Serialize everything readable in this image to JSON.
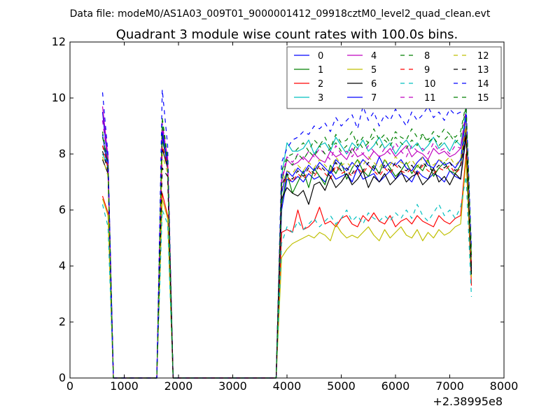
{
  "figure": {
    "suptitle": "Data file: modeM0/AS1A03_009T01_9000001412_09918cztM0_level2_quad_clean.evt",
    "title": "Quadrant 3 module wise count rates with 100.0s bins.",
    "x_offset_label": "+2.38995e8"
  },
  "chart_data": {
    "type": "line",
    "title": "Quadrant 3 module wise count rates with 100.0s bins.",
    "xlabel": "",
    "ylabel": "",
    "xlim": [
      0,
      8000
    ],
    "ylim": [
      0,
      12
    ],
    "x_offset": "+2.38995e8",
    "x_ticks": [
      0,
      1000,
      2000,
      3000,
      4000,
      5000,
      6000,
      7000,
      8000
    ],
    "y_ticks": [
      0,
      2,
      4,
      6,
      8,
      10,
      12
    ],
    "grid": false,
    "legend": {
      "placement": "top-right",
      "columns": 4
    },
    "x": [
      600,
      700,
      800,
      900,
      1000,
      1100,
      1200,
      1300,
      1400,
      1500,
      1600,
      1700,
      1800,
      1900,
      2000,
      2100,
      2200,
      2300,
      2400,
      2500,
      2600,
      2700,
      2800,
      2900,
      3000,
      3100,
      3200,
      3300,
      3400,
      3500,
      3600,
      3700,
      3800,
      3900,
      4000,
      4100,
      4200,
      4300,
      4400,
      4500,
      4600,
      4700,
      4800,
      4900,
      5000,
      5100,
      5200,
      5300,
      5400,
      5500,
      5600,
      5700,
      5800,
      5900,
      6000,
      6100,
      6200,
      6300,
      6400,
      6500,
      6600,
      6700,
      6800,
      6900,
      7000,
      7100,
      7200,
      7300,
      7400
    ],
    "series": [
      {
        "name": "0",
        "color": "#0000ff",
        "dash": "solid",
        "values": [
          9.5,
          7.6,
          0,
          0,
          0,
          0,
          0,
          0,
          0,
          0,
          0,
          8.7,
          7.5,
          0,
          0,
          0,
          0,
          0,
          0,
          0,
          0,
          0,
          0,
          0,
          0,
          0,
          0,
          0,
          0,
          0,
          0,
          0,
          0,
          6.0,
          7.1,
          7.0,
          7.2,
          7.0,
          7.3,
          7.1,
          7.2,
          7.0,
          7.4,
          7.1,
          7.2,
          7.3,
          7.0,
          7.5,
          7.1,
          7.2,
          7.3,
          7.0,
          7.2,
          7.4,
          7.1,
          7.3,
          7.2,
          7.0,
          7.4,
          7.2,
          7.1,
          7.3,
          7.2,
          7.0,
          7.4,
          7.2,
          7.1,
          8.8,
          3.9
        ]
      },
      {
        "name": "1",
        "color": "#008000",
        "dash": "solid",
        "values": [
          8.3,
          7.8,
          0,
          0,
          0,
          0,
          0,
          0,
          0,
          0,
          0,
          8.5,
          7.7,
          0,
          0,
          0,
          0,
          0,
          0,
          0,
          0,
          0,
          0,
          0,
          0,
          0,
          0,
          0,
          0,
          0,
          0,
          0,
          0,
          6.2,
          7.3,
          6.6,
          7.0,
          7.4,
          6.8,
          7.5,
          7.2,
          6.9,
          7.6,
          7.3,
          7.7,
          7.1,
          7.5,
          7.8,
          7.4,
          7.2,
          7.6,
          7.3,
          7.8,
          7.5,
          7.2,
          7.4,
          7.7,
          7.3,
          7.6,
          7.4,
          7.8,
          7.2,
          7.5,
          7.7,
          7.4,
          7.3,
          7.6,
          9.0,
          4.0
        ]
      },
      {
        "name": "2",
        "color": "#ff0000",
        "dash": "solid",
        "values": [
          6.5,
          5.9,
          0,
          0,
          0,
          0,
          0,
          0,
          0,
          0,
          0,
          6.6,
          5.8,
          0,
          0,
          0,
          0,
          0,
          0,
          0,
          0,
          0,
          0,
          0,
          0,
          0,
          0,
          0,
          0,
          0,
          0,
          0,
          0,
          5.2,
          5.3,
          5.2,
          6.0,
          5.3,
          5.4,
          5.6,
          6.1,
          5.5,
          5.6,
          5.4,
          5.7,
          5.8,
          5.5,
          5.4,
          5.8,
          5.6,
          5.9,
          5.6,
          5.5,
          5.8,
          5.4,
          5.6,
          5.7,
          5.5,
          5.8,
          5.6,
          5.5,
          5.4,
          5.8,
          5.6,
          5.5,
          5.7,
          5.8,
          8.0,
          3.3
        ]
      },
      {
        "name": "3",
        "color": "#00bfbf",
        "dash": "solid",
        "values": [
          8.0,
          7.6,
          0,
          0,
          0,
          0,
          0,
          0,
          0,
          0,
          0,
          9.0,
          7.8,
          0,
          0,
          0,
          0,
          0,
          0,
          0,
          0,
          0,
          0,
          0,
          0,
          0,
          0,
          0,
          0,
          0,
          0,
          0,
          0,
          7.2,
          8.4,
          8.1,
          8.1,
          8.2,
          8.5,
          8.0,
          8.3,
          8.4,
          8.1,
          8.6,
          8.3,
          8.0,
          8.4,
          8.2,
          8.5,
          8.1,
          8.3,
          8.6,
          8.2,
          8.4,
          8.0,
          8.3,
          8.5,
          8.2,
          8.4,
          8.1,
          8.3,
          8.6,
          8.2,
          8.4,
          8.1,
          8.5,
          8.3,
          9.5,
          4.4
        ]
      },
      {
        "name": "4",
        "color": "#bf00bf",
        "dash": "solid",
        "values": [
          9.7,
          7.9,
          0,
          0,
          0,
          0,
          0,
          0,
          0,
          0,
          0,
          8.9,
          7.9,
          0,
          0,
          0,
          0,
          0,
          0,
          0,
          0,
          0,
          0,
          0,
          0,
          0,
          0,
          0,
          0,
          0,
          0,
          0,
          0,
          7.0,
          7.8,
          7.6,
          7.7,
          7.9,
          7.7,
          8.0,
          7.8,
          7.7,
          8.1,
          7.9,
          8.0,
          7.8,
          8.2,
          7.9,
          8.0,
          7.8,
          8.1,
          7.9,
          8.0,
          8.2,
          7.9,
          8.1,
          8.3,
          7.9,
          8.1,
          8.0,
          7.8,
          8.2,
          8.0,
          8.1,
          7.9,
          8.0,
          8.2,
          9.3,
          4.2
        ]
      },
      {
        "name": "5",
        "color": "#bfbf00",
        "dash": "solid",
        "values": [
          6.4,
          5.8,
          0,
          0,
          0,
          0,
          0,
          0,
          0,
          0,
          0,
          6.4,
          5.7,
          0,
          0,
          0,
          0,
          0,
          0,
          0,
          0,
          0,
          0,
          0,
          0,
          0,
          0,
          0,
          0,
          0,
          0,
          0,
          0,
          4.3,
          4.6,
          4.8,
          4.9,
          5.0,
          5.1,
          5.0,
          5.2,
          5.1,
          4.9,
          5.5,
          5.2,
          5.0,
          5.1,
          5.0,
          5.2,
          5.4,
          5.1,
          4.9,
          5.3,
          5.0,
          5.2,
          5.4,
          5.1,
          5.0,
          5.3,
          4.9,
          5.2,
          5.0,
          5.3,
          5.1,
          5.2,
          5.4,
          5.5,
          7.8,
          3.6
        ]
      },
      {
        "name": "6",
        "color": "#000000",
        "dash": "solid",
        "values": [
          7.8,
          7.3,
          0,
          0,
          0,
          0,
          0,
          0,
          0,
          0,
          0,
          8.2,
          7.5,
          0,
          0,
          0,
          0,
          0,
          0,
          0,
          0,
          0,
          0,
          0,
          0,
          0,
          0,
          0,
          0,
          0,
          0,
          0,
          0,
          6.4,
          6.8,
          6.6,
          6.5,
          6.7,
          6.2,
          6.9,
          7.0,
          6.7,
          7.2,
          6.8,
          7.0,
          7.3,
          6.9,
          7.1,
          7.4,
          6.8,
          7.2,
          7.0,
          7.3,
          6.9,
          7.1,
          7.4,
          7.0,
          7.2,
          7.3,
          6.9,
          7.1,
          7.5,
          7.0,
          7.2,
          6.9,
          7.3,
          7.1,
          8.6,
          3.7
        ]
      },
      {
        "name": "7",
        "color": "#0000ff",
        "dash": "solid",
        "values": [
          8.7,
          7.4,
          0,
          0,
          0,
          0,
          0,
          0,
          0,
          0,
          0,
          8.8,
          7.6,
          0,
          0,
          0,
          0,
          0,
          0,
          0,
          0,
          0,
          0,
          0,
          0,
          0,
          0,
          0,
          0,
          0,
          0,
          0,
          0,
          6.6,
          7.4,
          7.2,
          7.5,
          7.3,
          7.6,
          7.4,
          7.7,
          7.5,
          7.3,
          7.8,
          7.6,
          7.4,
          7.7,
          7.5,
          7.8,
          7.6,
          7.4,
          7.9,
          7.5,
          7.7,
          7.6,
          7.8,
          7.5,
          7.4,
          7.7,
          7.9,
          7.6,
          7.5,
          7.8,
          7.6,
          7.7,
          7.5,
          7.8,
          9.4,
          4.1
        ]
      },
      {
        "name": "8",
        "color": "#008000",
        "dash": "dashed",
        "values": [
          8.6,
          7.7,
          0,
          0,
          0,
          0,
          0,
          0,
          0,
          0,
          0,
          9.3,
          7.9,
          0,
          0,
          0,
          0,
          0,
          0,
          0,
          0,
          0,
          0,
          0,
          0,
          0,
          0,
          0,
          0,
          0,
          0,
          0,
          0,
          7.4,
          7.9,
          8.0,
          8.2,
          8.4,
          8.1,
          8.5,
          8.3,
          8.6,
          8.2,
          8.7,
          8.4,
          8.5,
          8.8,
          8.3,
          8.6,
          8.4,
          8.9,
          8.5,
          8.7,
          8.4,
          8.8,
          8.6,
          8.5,
          8.9,
          8.6,
          8.7,
          8.5,
          8.8,
          8.6,
          8.9,
          8.7,
          8.6,
          8.8,
          9.8,
          4.5
        ]
      },
      {
        "name": "9",
        "color": "#ff0000",
        "dash": "dashed",
        "values": [
          8.3,
          7.5,
          0,
          0,
          0,
          0,
          0,
          0,
          0,
          0,
          0,
          8.3,
          7.6,
          0,
          0,
          0,
          0,
          0,
          0,
          0,
          0,
          0,
          0,
          0,
          0,
          0,
          0,
          0,
          0,
          0,
          0,
          0,
          0,
          6.8,
          7.2,
          7.0,
          7.3,
          7.1,
          7.4,
          7.2,
          7.5,
          7.3,
          7.1,
          7.6,
          7.3,
          7.4,
          7.2,
          7.5,
          7.3,
          7.6,
          7.4,
          7.2,
          7.5,
          7.3,
          7.6,
          7.4,
          7.3,
          7.5,
          7.2,
          7.6,
          7.4,
          7.3,
          7.5,
          7.4,
          7.6,
          7.3,
          7.5,
          8.9,
          4.0
        ]
      },
      {
        "name": "10",
        "color": "#00bfbf",
        "dash": "dashed",
        "values": [
          6.2,
          5.4,
          0,
          0,
          0,
          0,
          0,
          0,
          0,
          0,
          0,
          6.0,
          5.5,
          0,
          0,
          0,
          0,
          0,
          0,
          0,
          0,
          0,
          0,
          0,
          0,
          0,
          0,
          0,
          0,
          0,
          0,
          0,
          0,
          4.8,
          5.4,
          5.2,
          5.6,
          5.3,
          5.5,
          5.7,
          5.4,
          5.6,
          5.8,
          5.5,
          5.7,
          6.0,
          5.6,
          5.8,
          5.5,
          5.9,
          5.7,
          5.6,
          5.8,
          5.6,
          5.9,
          5.7,
          6.0,
          5.7,
          6.2,
          5.8,
          5.6,
          5.9,
          6.2,
          5.8,
          6.0,
          5.7,
          6.1,
          7.2,
          2.9
        ]
      },
      {
        "name": "11",
        "color": "#bf00bf",
        "dash": "dashed",
        "values": [
          9.2,
          7.7,
          0,
          0,
          0,
          0,
          0,
          0,
          0,
          0,
          0,
          9.1,
          7.8,
          0,
          0,
          0,
          0,
          0,
          0,
          0,
          0,
          0,
          0,
          0,
          0,
          0,
          0,
          0,
          0,
          0,
          0,
          0,
          0,
          7.1,
          7.9,
          7.7,
          8.0,
          7.8,
          8.1,
          7.9,
          8.2,
          8.0,
          7.8,
          8.3,
          8.0,
          8.1,
          7.9,
          8.2,
          8.0,
          8.3,
          8.1,
          7.9,
          8.2,
          8.0,
          8.4,
          8.1,
          7.9,
          8.3,
          8.1,
          8.2,
          8.0,
          8.4,
          8.1,
          8.2,
          8.0,
          8.3,
          8.2,
          9.6,
          4.3
        ]
      },
      {
        "name": "12",
        "color": "#bfbf00",
        "dash": "dashed",
        "values": [
          7.9,
          7.2,
          0,
          0,
          0,
          0,
          0,
          0,
          0,
          0,
          0,
          8.0,
          7.3,
          0,
          0,
          0,
          0,
          0,
          0,
          0,
          0,
          0,
          0,
          0,
          0,
          0,
          0,
          0,
          0,
          0,
          0,
          0,
          0,
          6.9,
          7.4,
          7.3,
          7.6,
          7.4,
          7.7,
          7.5,
          7.8,
          7.6,
          7.4,
          7.9,
          7.6,
          7.7,
          7.5,
          7.8,
          7.6,
          7.9,
          7.7,
          7.5,
          7.8,
          7.6,
          7.9,
          7.7,
          7.6,
          7.8,
          7.5,
          7.9,
          7.7,
          7.6,
          7.8,
          7.7,
          7.9,
          7.6,
          7.8,
          9.1,
          4.1
        ]
      },
      {
        "name": "13",
        "color": "#000000",
        "dash": "dashed",
        "values": [
          8.1,
          7.4,
          0,
          0,
          0,
          0,
          0,
          0,
          0,
          0,
          0,
          7.5,
          7.2,
          0,
          0,
          0,
          0,
          0,
          0,
          0,
          0,
          0,
          0,
          0,
          0,
          0,
          0,
          0,
          0,
          0,
          0,
          0,
          0,
          6.9,
          7.3,
          7.1,
          7.4,
          7.2,
          7.5,
          7.3,
          7.6,
          7.4,
          7.2,
          7.7,
          7.4,
          7.5,
          7.3,
          7.6,
          7.4,
          7.7,
          7.5,
          7.3,
          7.6,
          7.4,
          7.7,
          7.5,
          7.4,
          7.6,
          7.3,
          7.7,
          7.5,
          7.4,
          7.6,
          7.5,
          7.7,
          7.4,
          7.6,
          8.7,
          3.8
        ]
      },
      {
        "name": "14",
        "color": "#0000ff",
        "dash": "dashed",
        "values": [
          10.2,
          8.0,
          0,
          0,
          0,
          0,
          0,
          0,
          0,
          0,
          0,
          10.3,
          8.3,
          0,
          0,
          0,
          0,
          0,
          0,
          0,
          0,
          0,
          0,
          0,
          0,
          0,
          0,
          0,
          0,
          0,
          0,
          0,
          0,
          7.7,
          8.2,
          8.5,
          8.6,
          8.8,
          8.7,
          9.0,
          8.9,
          9.1,
          8.8,
          9.3,
          9.0,
          9.2,
          9.4,
          8.9,
          9.7,
          9.2,
          9.5,
          9.0,
          9.4,
          9.2,
          9.6,
          9.3,
          9.0,
          9.5,
          9.2,
          9.4,
          9.7,
          9.3,
          9.5,
          9.2,
          9.6,
          9.4,
          9.5,
          9.8,
          4.6
        ]
      },
      {
        "name": "15",
        "color": "#008000",
        "dash": "dashed",
        "values": [
          8.8,
          7.6,
          0,
          0,
          0,
          0,
          0,
          0,
          0,
          0,
          0,
          9.2,
          7.7,
          0,
          0,
          0,
          0,
          0,
          0,
          0,
          0,
          0,
          0,
          0,
          0,
          0,
          0,
          0,
          0,
          0,
          0,
          0,
          0,
          7.0,
          7.8,
          7.6,
          8.0,
          7.8,
          8.1,
          7.9,
          8.3,
          8.0,
          8.2,
          8.4,
          8.1,
          8.3,
          8.0,
          8.5,
          8.2,
          8.4,
          8.6,
          8.2,
          8.5,
          8.3,
          8.6,
          8.4,
          8.2,
          8.5,
          8.3,
          8.7,
          8.4,
          8.6,
          8.3,
          8.5,
          8.7,
          8.4,
          8.6,
          9.7,
          4.4
        ]
      }
    ]
  }
}
